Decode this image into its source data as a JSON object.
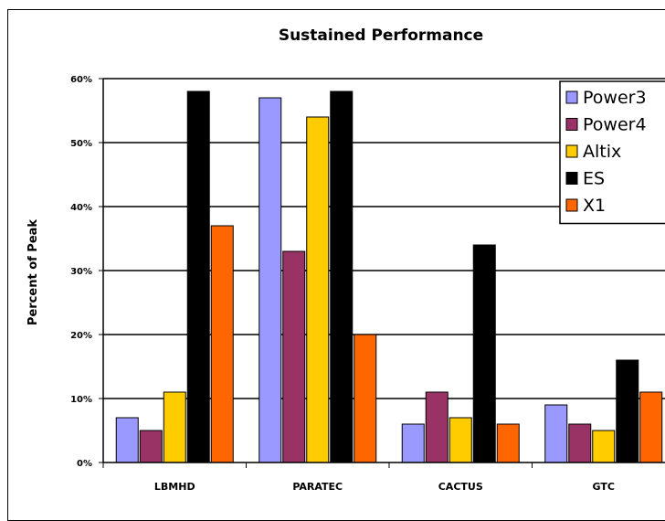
{
  "chart_data": {
    "type": "bar",
    "title": "Sustained Performance",
    "xlabel": "",
    "ylabel": "Percent of Peak",
    "ylim": [
      0,
      60
    ],
    "yticks": [
      "0%",
      "10%",
      "20%",
      "30%",
      "40%",
      "50%",
      "60%"
    ],
    "grid": true,
    "legend_position": "top-right",
    "categories": [
      "LBMHD",
      "PARATEC",
      "CACTUS",
      "GTC"
    ],
    "series": [
      {
        "name": "Power3",
        "color": "#9999ff",
        "values": [
          7,
          57,
          6,
          9
        ]
      },
      {
        "name": "Power4",
        "color": "#993366",
        "values": [
          5,
          33,
          11,
          6
        ]
      },
      {
        "name": "Altix",
        "color": "#ffcc00",
        "values": [
          11,
          54,
          7,
          5
        ]
      },
      {
        "name": "ES",
        "color": "#000000",
        "values": [
          58,
          58,
          34,
          16
        ]
      },
      {
        "name": "X1",
        "color": "#ff6600",
        "values": [
          37,
          20,
          6,
          11
        ]
      }
    ]
  }
}
